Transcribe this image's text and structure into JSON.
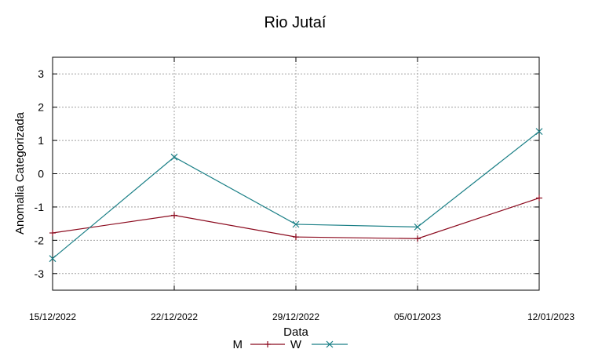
{
  "chart_data": {
    "type": "line",
    "title": "Rio Jutaí",
    "xlabel": "Data",
    "ylabel": "Anomalia Categorizada",
    "categories": [
      "15/12/2022",
      "22/12/2022",
      "29/12/2022",
      "05/01/2023",
      "12/01/2023"
    ],
    "ylim": [
      -3.5,
      3.5
    ],
    "yticks": [
      -3,
      -2,
      -1,
      0,
      1,
      2,
      3
    ],
    "grid": true,
    "legend": "bottom-center",
    "series": [
      {
        "name": "M",
        "color": "#8b0a1e",
        "marker": "plus",
        "values": [
          -1.78,
          -1.25,
          -1.9,
          -1.95,
          -0.73
        ]
      },
      {
        "name": "W",
        "color": "#1a7f86",
        "marker": "x",
        "values": [
          -2.55,
          0.5,
          -1.52,
          -1.6,
          1.27
        ]
      }
    ]
  }
}
